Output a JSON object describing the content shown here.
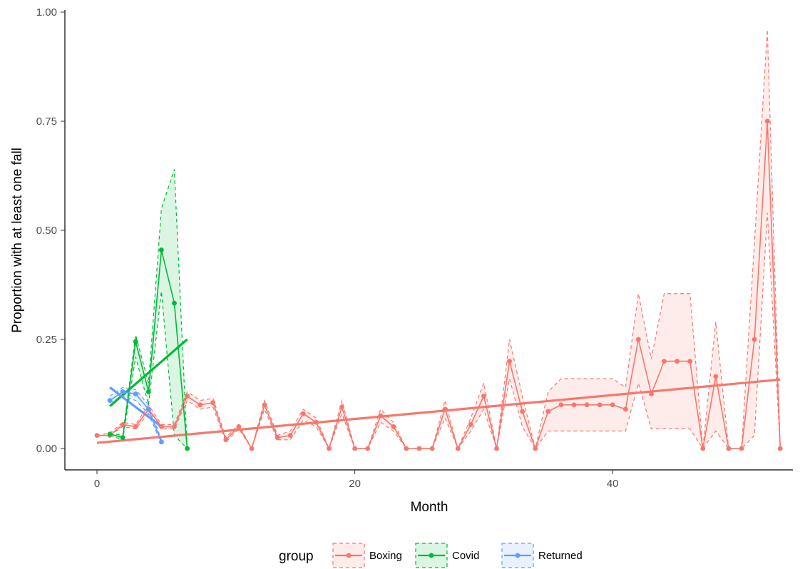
{
  "chart_data": {
    "type": "line",
    "xlabel": "Month",
    "ylabel": "Proportion with at least one fall",
    "xlim": [
      -1,
      53
    ],
    "ylim": [
      -0.05,
      1.0
    ],
    "x_ticks": [
      0,
      20,
      40
    ],
    "y_ticks": [
      0.0,
      0.25,
      0.5,
      0.75,
      1.0
    ],
    "x_tick_labels": [
      "0",
      "20",
      "40"
    ],
    "y_tick_labels": [
      "0.00",
      "0.25",
      "0.50",
      "0.75",
      "1.00"
    ],
    "grid": false,
    "legend": {
      "title": "group",
      "position": "bottom",
      "entries": [
        "Boxing",
        "Covid",
        "Returned"
      ]
    },
    "series": [
      {
        "name": "Boxing",
        "color": "#F8766D",
        "x": [
          0,
          1,
          2,
          3,
          4,
          5,
          6,
          7,
          8,
          9,
          10,
          11,
          12,
          13,
          14,
          15,
          16,
          17,
          18,
          19,
          20,
          21,
          22,
          23,
          24,
          25,
          26,
          27,
          28,
          29,
          30,
          31,
          32,
          33,
          34,
          35,
          36,
          37,
          38,
          39,
          40,
          41,
          42,
          43,
          44,
          45,
          46,
          47,
          48,
          49,
          50,
          51,
          52,
          53
        ],
        "y": [
          0.03,
          0.03,
          0.055,
          0.05,
          0.09,
          0.05,
          0.05,
          0.12,
          0.1,
          0.105,
          0.02,
          0.05,
          0.0,
          0.1,
          0.025,
          0.03,
          0.08,
          0.06,
          0.0,
          0.095,
          0.0,
          0.0,
          0.075,
          0.05,
          0.0,
          0.0,
          0.0,
          0.09,
          0.0,
          0.055,
          0.12,
          0.0,
          0.2,
          0.085,
          0.0,
          0.085,
          0.1,
          0.1,
          0.1,
          0.1,
          0.1,
          0.09,
          0.25,
          0.125,
          0.2,
          0.2,
          0.2,
          0.0,
          0.165,
          0.0,
          0.0,
          0.25,
          0.75,
          0.0
        ],
        "ci_lower": [
          0.03,
          0.03,
          0.05,
          0.045,
          0.08,
          0.045,
          0.045,
          0.11,
          0.09,
          0.095,
          0.015,
          0.045,
          0.0,
          0.09,
          0.02,
          0.02,
          0.065,
          0.05,
          0.0,
          0.08,
          0.0,
          0.0,
          0.06,
          0.04,
          0.0,
          0.0,
          0.0,
          0.07,
          0.0,
          0.04,
          0.09,
          0.0,
          0.16,
          0.05,
          0.0,
          0.04,
          0.04,
          0.04,
          0.04,
          0.04,
          0.04,
          0.04,
          0.15,
          0.045,
          0.045,
          0.045,
          0.045,
          0.0,
          0.04,
          0.0,
          0.0,
          0.03,
          0.54,
          0.0
        ],
        "ci_upper": [
          0.03,
          0.035,
          0.06,
          0.055,
          0.1,
          0.055,
          0.055,
          0.13,
          0.11,
          0.115,
          0.025,
          0.055,
          0.0,
          0.11,
          0.03,
          0.04,
          0.09,
          0.07,
          0.0,
          0.11,
          0.0,
          0.0,
          0.09,
          0.06,
          0.0,
          0.0,
          0.0,
          0.11,
          0.0,
          0.07,
          0.15,
          0.0,
          0.25,
          0.12,
          0.0,
          0.13,
          0.16,
          0.16,
          0.16,
          0.16,
          0.16,
          0.14,
          0.355,
          0.205,
          0.355,
          0.355,
          0.355,
          0.0,
          0.29,
          0.0,
          0.0,
          0.47,
          0.96,
          0.0
        ],
        "trend": {
          "x": [
            0,
            53
          ],
          "y": [
            0.013,
            0.158
          ]
        }
      },
      {
        "name": "Covid",
        "color": "#00BA38",
        "x": [
          1,
          2,
          3,
          4,
          5,
          6,
          7
        ],
        "y": [
          0.033,
          0.025,
          0.245,
          0.13,
          0.455,
          0.333,
          0.0
        ],
        "ci_lower": [
          0.03,
          0.02,
          0.21,
          0.1,
          0.36,
          0.03,
          0.0
        ],
        "ci_upper": [
          0.035,
          0.03,
          0.26,
          0.15,
          0.55,
          0.64,
          0.0
        ],
        "trend": {
          "x": [
            1,
            7
          ],
          "y": [
            0.097,
            0.25
          ]
        }
      },
      {
        "name": "Returned",
        "color": "#619CFF",
        "x": [
          1,
          2,
          3,
          4,
          5
        ],
        "y": [
          0.11,
          0.13,
          0.125,
          0.09,
          0.015
        ],
        "ci_lower": [
          0.105,
          0.12,
          0.11,
          0.08,
          0.01
        ],
        "ci_upper": [
          0.12,
          0.14,
          0.135,
          0.1,
          0.02
        ],
        "trend": {
          "x": [
            1,
            5
          ],
          "y": [
            0.14,
            0.05
          ]
        }
      }
    ]
  }
}
